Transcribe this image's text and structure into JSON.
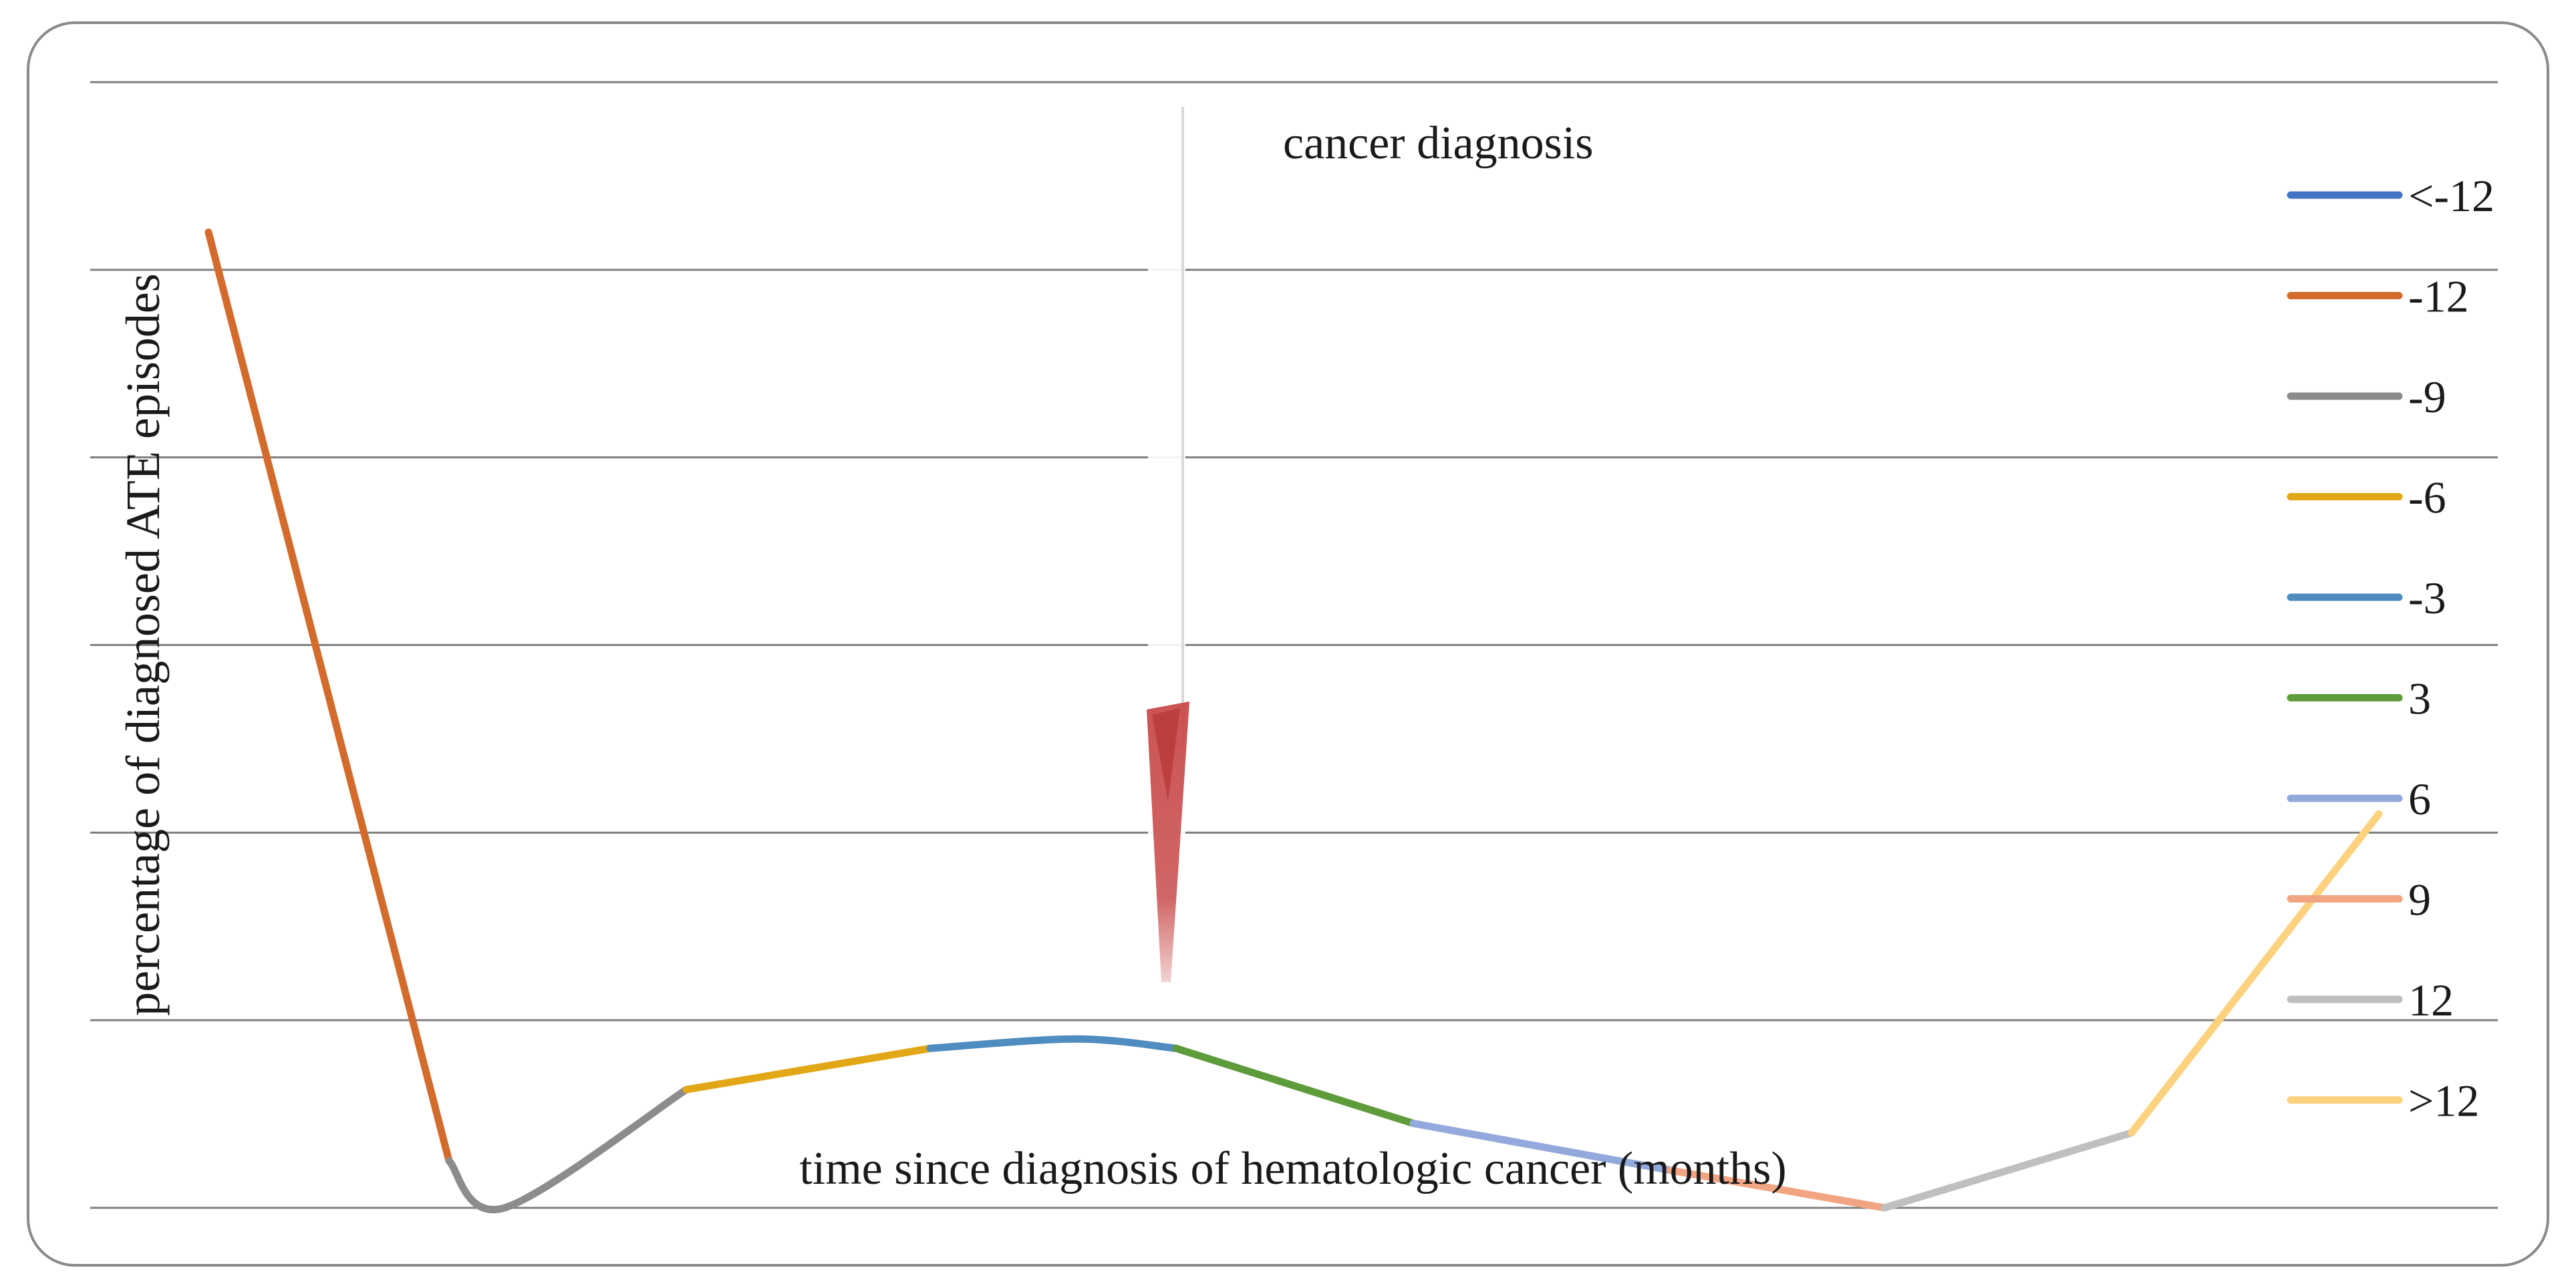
{
  "chart_data": {
    "type": "line",
    "title": "",
    "xlabel": "time since diagnosis of hematologic cancer (months)",
    "ylabel": "percentage of diagnosed ATE episodes",
    "ylim": [
      0,
      6
    ],
    "grid": true,
    "legend_position": "right",
    "annotation": {
      "text": "cancer diagnosis",
      "marks": "arrow pointing down at diagnosis"
    },
    "series": [
      {
        "name": "<-12",
        "color": "#4472C4",
        "values": []
      },
      {
        "name": "-12",
        "color": "#D26B2C",
        "values": [
          5.2,
          0.25
        ]
      },
      {
        "name": "-9",
        "color": "#8C8C8C",
        "values": [
          0.25,
          0,
          0.63
        ]
      },
      {
        "name": "-6",
        "color": "#E1A716",
        "values": [
          0.63,
          0.85
        ]
      },
      {
        "name": "-3",
        "color": "#4F8CBF",
        "values": [
          0.85,
          0.9,
          0.85
        ]
      },
      {
        "name": "3",
        "color": "#5E9B3A",
        "values": [
          0.85,
          0.45
        ]
      },
      {
        "name": "6",
        "color": "#93A8DB",
        "values": [
          0.45,
          0.2
        ]
      },
      {
        "name": "9",
        "color": "#F2A582",
        "values": [
          0.2,
          0
        ]
      },
      {
        "name": "12",
        "color": "#BFBFBF",
        "values": [
          0,
          0.4
        ]
      },
      {
        "name": ">12",
        "color": "#FDD27E",
        "values": [
          0.4,
          2.1
        ]
      }
    ]
  }
}
